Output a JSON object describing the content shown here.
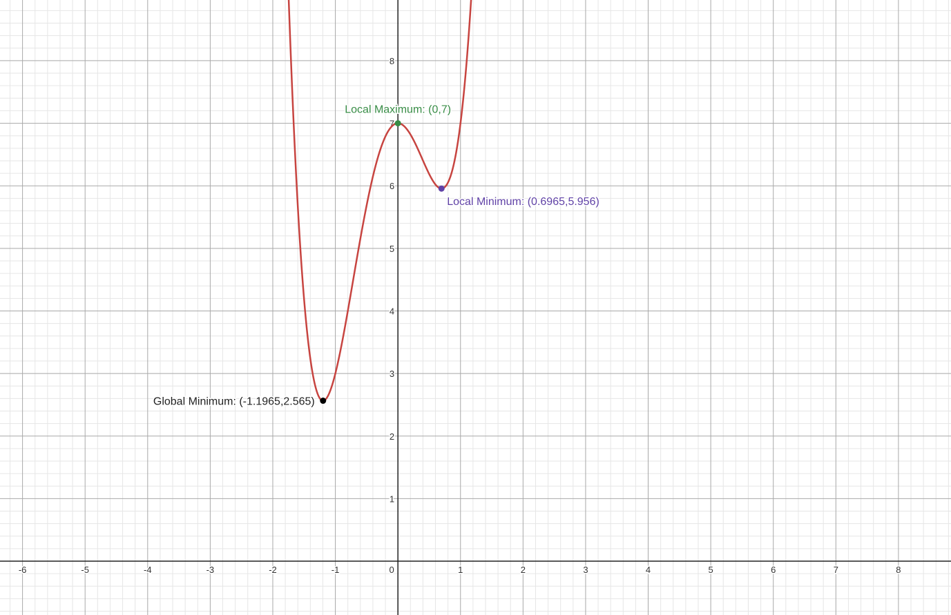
{
  "chart_data": {
    "type": "line",
    "title": "",
    "xlabel": "",
    "ylabel": "",
    "xlim": [
      -6.36,
      8.84
    ],
    "ylim": [
      -0.86,
      8.97
    ],
    "grid": true,
    "minor_subdivisions": 5,
    "x_ticks": [
      -6,
      -5,
      -4,
      -3,
      -2,
      -1,
      0,
      1,
      2,
      3,
      4,
      5,
      6,
      7,
      8
    ],
    "y_ticks": [
      1,
      2,
      3,
      4,
      5,
      6,
      7,
      8
    ],
    "series": [
      {
        "expression_coefficients": [
          3,
          2,
          -5,
          0,
          7
        ],
        "color": "#c74440"
      }
    ],
    "points": [
      {
        "x": 0,
        "y": 7,
        "label": "Local Maximum: (0,7)",
        "color": "#388c46",
        "label_pos": "above"
      },
      {
        "x": 0.6965,
        "y": 5.956,
        "label": "Local Minimum: (0.6965,5.956)",
        "color": "#6042a6",
        "label_pos": "below-right"
      },
      {
        "x": -1.1965,
        "y": 2.565,
        "label": "Global Minimum: (-1.1965,2.565)",
        "color": "#000000",
        "label_pos": "left"
      }
    ]
  }
}
